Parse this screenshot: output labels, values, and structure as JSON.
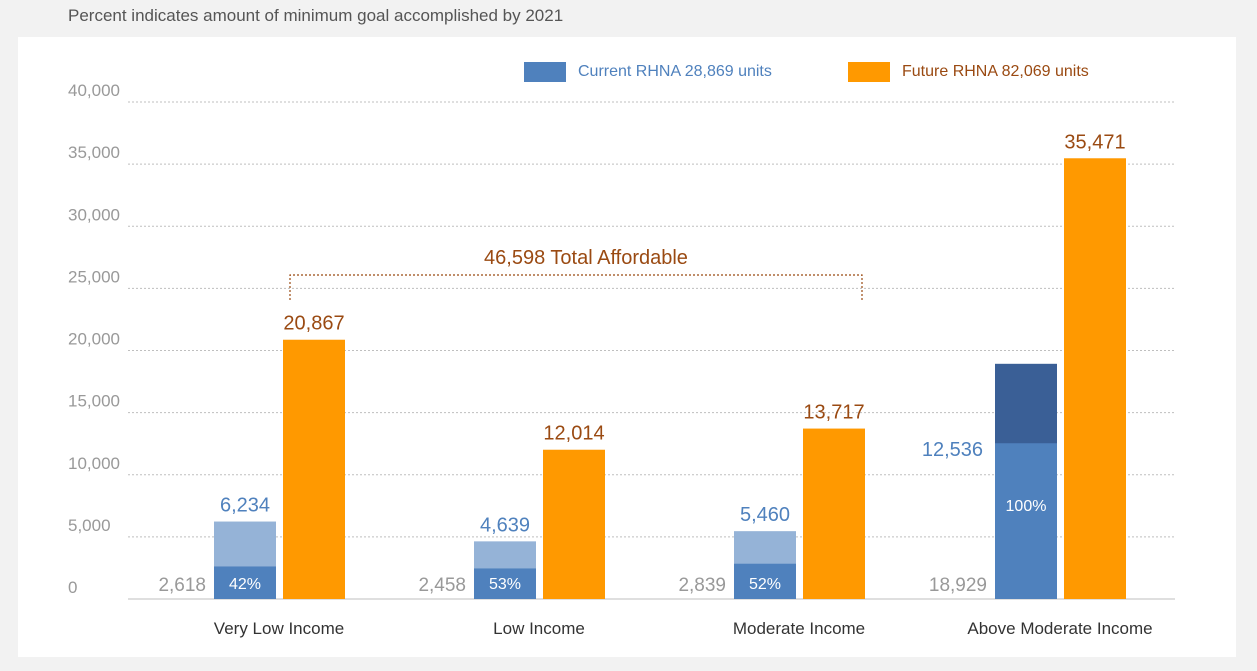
{
  "subtitle": "Percent indicates amount of minimum goal accomplished by 2021",
  "legend": {
    "current": "Current RHNA 28,869 units",
    "future": "Future RHNA 82,069 units"
  },
  "colors": {
    "current_light": "#95b3d7",
    "current_dark": "#4f81bd",
    "current_deep": "#3a5f96",
    "future": "#ff9900",
    "future_text": "#9a4a12",
    "current_text": "#4f81bd",
    "axis_text": "#999999"
  },
  "chart_data": {
    "type": "bar",
    "title": "",
    "xlabel": "",
    "ylabel": "",
    "ylim": [
      0,
      40000
    ],
    "yticks": [
      0,
      5000,
      10000,
      15000,
      20000,
      25000,
      30000,
      35000,
      40000
    ],
    "ytick_labels": [
      "0",
      "5,000",
      "10,000",
      "15,000",
      "20,000",
      "25,000",
      "30,000",
      "35,000",
      "40,000"
    ],
    "categories": [
      "Very Low Income",
      "Low Income",
      "Moderate Income",
      "Above Moderate Income"
    ],
    "series": [
      {
        "name": "Current RHNA 28,869 units",
        "values": [
          6234,
          4639,
          5460,
          12536
        ],
        "labels": [
          "6,234",
          "4,639",
          "5,460",
          "12,536"
        ],
        "accomplished": [
          2618,
          2458,
          2839,
          18929
        ],
        "accomplished_labels": [
          "2,618",
          "2,458",
          "2,839",
          "18,929"
        ],
        "percent_labels": [
          "42%",
          "53%",
          "52%",
          "100%"
        ]
      },
      {
        "name": "Future RHNA 82,069 units",
        "values": [
          20867,
          12014,
          13717,
          35471
        ],
        "labels": [
          "20,867",
          "12,014",
          "13,717",
          "35,471"
        ]
      }
    ],
    "annotation": "46,598  Total Affordable"
  }
}
